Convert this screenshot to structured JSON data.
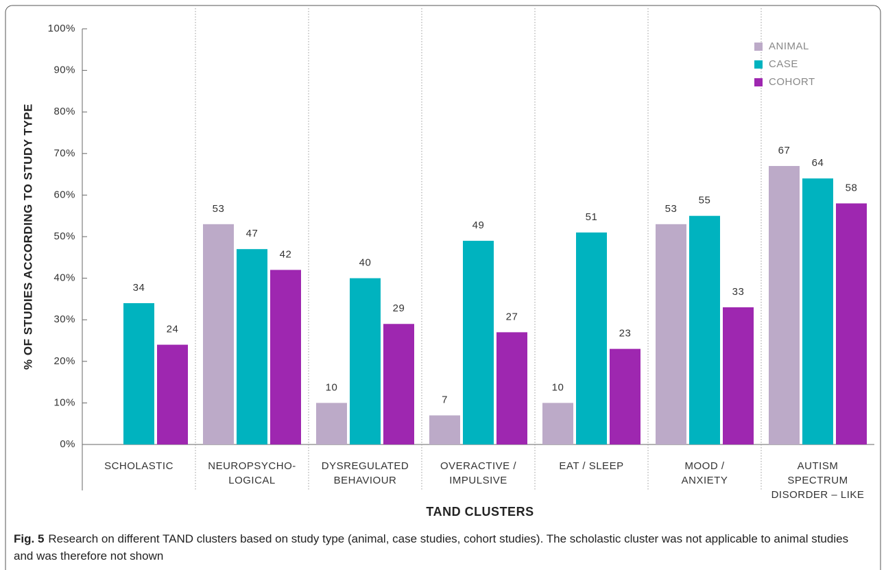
{
  "chart_data": {
    "type": "bar",
    "y_label": "% OF STUDIES ACCORDING TO STUDY TYPE",
    "x_label": "TAND CLUSTERS",
    "figure_label": "Fig. 5",
    "caption": "Research on different TAND clusters based on study type (animal, case studies, cohort studies). The scholastic cluster was not applicable to animal studies and was therefore not shown",
    "categories": [
      "SCHOLASTIC",
      "NEUROPSYCHO-\nLOGICAL",
      "DYSREGULATED\nBEHAVIOUR",
      "OVERACTIVE /\nIMPULSIVE",
      "EAT / SLEEP",
      "MOOD /\nANXIETY",
      "AUTISM\nSPECTRUM\nDISORDER – LIKE"
    ],
    "series": [
      {
        "name": "ANIMAL",
        "color": "#bcaac8",
        "values": [
          null,
          53,
          10,
          7,
          10,
          53,
          67
        ]
      },
      {
        "name": "CASE",
        "color": "#00b3bf",
        "values": [
          34,
          47,
          40,
          49,
          51,
          55,
          64
        ]
      },
      {
        "name": "COHORT",
        "color": "#9e27b0",
        "values": [
          24,
          42,
          29,
          27,
          23,
          33,
          58
        ]
      }
    ],
    "ylim": [
      0,
      100
    ],
    "yticks": [
      {
        "value": 0,
        "label": "0%"
      },
      {
        "value": 10,
        "label": "10%"
      },
      {
        "value": 20,
        "label": "20%"
      },
      {
        "value": 30,
        "label": "30%"
      },
      {
        "value": 40,
        "label": "40%"
      },
      {
        "value": 50,
        "label": "50%"
      },
      {
        "value": 60,
        "label": "60%"
      },
      {
        "value": 70,
        "label": "70%"
      },
      {
        "value": 80,
        "label": "80%"
      },
      {
        "value": 90,
        "label": "90%"
      },
      {
        "value": 100,
        "label": "100%"
      }
    ],
    "legend": "top-right"
  }
}
